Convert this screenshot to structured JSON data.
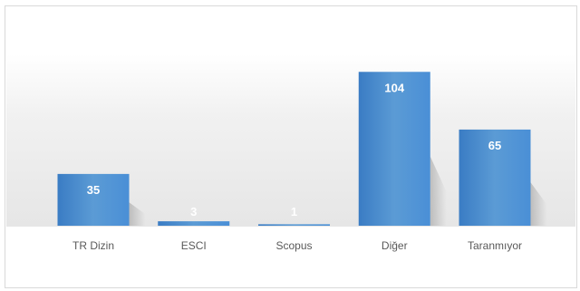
{
  "chart_data": {
    "type": "bar",
    "categories": [
      "TR Dizin",
      "ESCI",
      "Scopus",
      "Diğer",
      "Taranmıyor"
    ],
    "values": [
      35,
      3,
      1,
      104,
      65
    ],
    "data_labels": [
      "35",
      "3",
      "1",
      "104",
      "65"
    ],
    "ylim": [
      0,
      120
    ],
    "grid": false,
    "legend": "none",
    "bar_color": "#4a8fd6",
    "bar_color_light": "#5b9bd5",
    "bar_color_dark": "#3a7cc4",
    "plot_band_color": "#e8e8e8"
  }
}
